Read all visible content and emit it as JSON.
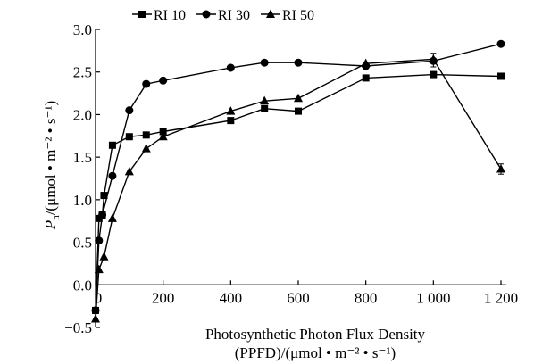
{
  "chart_data": {
    "type": "line",
    "xlabel_line1": "Photosynthetic Photon Flux Density",
    "xlabel_line2": "(PPFD)/(μmol • m⁻² • s⁻¹)",
    "ylabel_main": "P",
    "ylabel_sub": "n",
    "ylabel_rest": "/(μmol • m⁻² • s⁻¹)",
    "xlim": [
      0,
      1200
    ],
    "ylim": [
      -0.5,
      3.0
    ],
    "x_ticks": [
      0,
      200,
      400,
      600,
      800,
      1000,
      1200
    ],
    "x_tick_labels": [
      "0",
      "200",
      "400",
      "600",
      "800",
      "1 000",
      "1 200"
    ],
    "y_ticks": [
      -0.5,
      0.0,
      0.5,
      1.0,
      1.5,
      2.0,
      2.5,
      3.0
    ],
    "y_tick_labels": [
      "−0.5",
      "0.0",
      "0.5",
      "1.0",
      "1.5",
      "2.0",
      "2.5",
      "3.0"
    ],
    "legend_position": "top-left",
    "series": [
      {
        "name": "RI 10",
        "marker": "square",
        "points": [
          [
            0,
            -0.3
          ],
          [
            10,
            0.78
          ],
          [
            20,
            0.82
          ],
          [
            25,
            1.05
          ],
          [
            50,
            1.64
          ],
          [
            100,
            1.74
          ],
          [
            150,
            1.76
          ],
          [
            200,
            1.8
          ],
          [
            400,
            1.93
          ],
          [
            500,
            2.07
          ],
          [
            600,
            2.04
          ],
          [
            800,
            2.43
          ],
          [
            1000,
            2.47
          ],
          [
            1200,
            2.45
          ]
        ]
      },
      {
        "name": "RI 30",
        "marker": "circle",
        "points": [
          [
            0,
            -0.3
          ],
          [
            10,
            0.52
          ],
          [
            20,
            0.82
          ],
          [
            50,
            1.28
          ],
          [
            100,
            2.05
          ],
          [
            150,
            2.36
          ],
          [
            200,
            2.4
          ],
          [
            400,
            2.55
          ],
          [
            500,
            2.61
          ],
          [
            600,
            2.61
          ],
          [
            800,
            2.57
          ],
          [
            1000,
            2.63
          ],
          [
            1200,
            2.83
          ]
        ]
      },
      {
        "name": "RI 50",
        "marker": "triangle",
        "points": [
          [
            0,
            -0.4
          ],
          [
            10,
            0.18
          ],
          [
            25,
            0.33
          ],
          [
            50,
            0.78
          ],
          [
            100,
            1.33
          ],
          [
            150,
            1.6
          ],
          [
            200,
            1.74
          ],
          [
            400,
            2.04
          ],
          [
            500,
            2.16
          ],
          [
            600,
            2.19
          ],
          [
            800,
            2.6
          ],
          [
            1000,
            2.65
          ],
          [
            1200,
            1.36
          ]
        ]
      }
    ]
  }
}
